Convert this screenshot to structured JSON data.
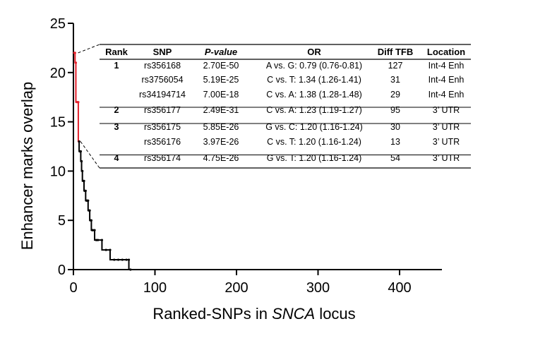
{
  "chart_data": {
    "type": "line",
    "xlabel_prefix": "Ranked-SNPs in ",
    "xlabel_italic": "SNCA",
    "xlabel_suffix": " locus",
    "ylabel": "Enhancer marks overlap",
    "xlim": [
      0,
      450
    ],
    "ylim": [
      0,
      25
    ],
    "xticks": [
      0,
      100,
      200,
      300,
      400
    ],
    "yticks": [
      0,
      5,
      10,
      15,
      20,
      25
    ],
    "grid": false,
    "series": [
      {
        "color": "#e3212b",
        "x": [
          1,
          2,
          3,
          4,
          5,
          6,
          7
        ],
        "y": [
          22,
          22,
          21,
          17,
          17,
          17,
          13
        ]
      },
      {
        "color": "#000000",
        "x": [
          7,
          8,
          9,
          10,
          11,
          12,
          13,
          14,
          15,
          16,
          17,
          18,
          19,
          20,
          21,
          22,
          23,
          24,
          26,
          28,
          30,
          35,
          40,
          45,
          50,
          55,
          60,
          65,
          68,
          70,
          100,
          150,
          200,
          250,
          300,
          350,
          400,
          448
        ],
        "y": [
          13,
          12,
          12,
          11,
          10,
          9,
          9,
          8,
          8,
          7,
          7,
          7,
          6,
          6,
          5,
          5,
          4,
          4,
          4,
          3,
          3,
          3,
          2,
          2,
          1,
          1,
          1,
          1,
          1,
          0,
          0,
          0,
          0,
          0,
          0,
          0,
          0,
          0
        ]
      }
    ],
    "inset_table": {
      "columns": [
        "Rank",
        "SNP",
        "P-value",
        "OR",
        "Diff TFB",
        "Location"
      ],
      "rows": [
        {
          "rank": "1",
          "snp": "rs356168",
          "p": "2.70E-50",
          "or": "A vs. G: 0.79 (0.76-0.81)",
          "tfb": "127",
          "loc": "Int-4 Enh"
        },
        {
          "rank": "",
          "snp": "rs3756054",
          "p": "5.19E-25",
          "or": "C vs. T: 1.34 (1.26-1.41)",
          "tfb": "31",
          "loc": "Int-4 Enh"
        },
        {
          "rank": "",
          "snp": "rs34194714",
          "p": "7.00E-18",
          "or": "C vs. A: 1.38 (1.28-1.48)",
          "tfb": "29",
          "loc": "Int-4 Enh"
        },
        {
          "rank": "2",
          "snp": "rs356177",
          "p": "2.49E-31",
          "or": "C vs. A: 1.23 (1.19-1.27)",
          "tfb": "95",
          "loc": "3’ UTR"
        },
        {
          "rank": "3",
          "snp": "rs356175",
          "p": "5.85E-26",
          "or": "G vs. C: 1.20 (1.16-1.24)",
          "tfb": "30",
          "loc": "3’ UTR"
        },
        {
          "rank": "",
          "snp": "rs356176",
          "p": "3.97E-26",
          "or": "C vs. T: 1.20 (1.16-1.24)",
          "tfb": "13",
          "loc": "3’ UTR"
        },
        {
          "rank": "4",
          "snp": "rs356174",
          "p": "4.75E-26",
          "or": "G vs. T: 1.20 (1.16-1.24)",
          "tfb": "54",
          "loc": "3’ UTR"
        }
      ],
      "group_separators_after_rows": [
        2,
        3,
        5
      ]
    }
  }
}
